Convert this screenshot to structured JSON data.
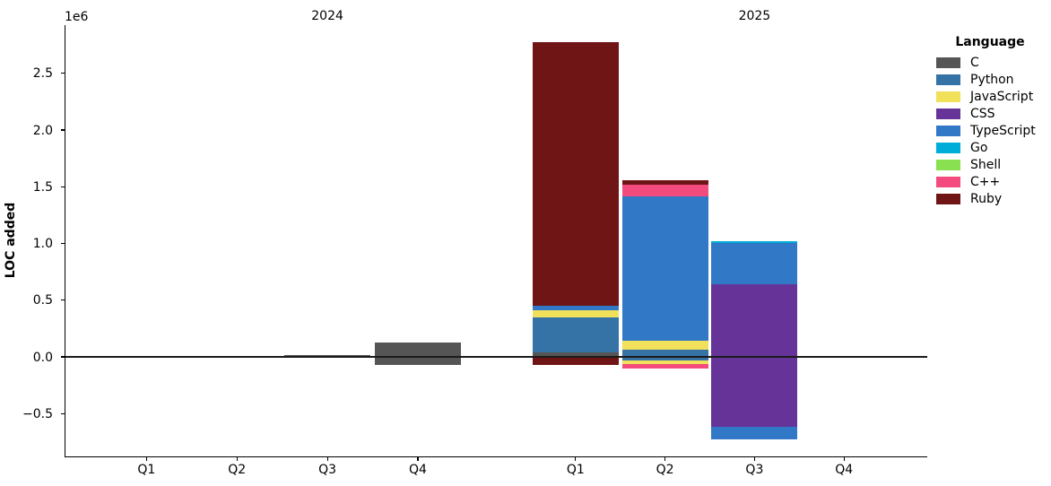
{
  "figure": {
    "background": "#ffffff"
  },
  "chart_data": {
    "type": "bar",
    "stacked": true,
    "title": "",
    "xlabel": "",
    "ylabel": "LOC added",
    "y_offset_text": "1e6",
    "y_unit": "LOC",
    "ylim": [
      -880000,
      2930000
    ],
    "grid": false,
    "zero_line": true,
    "yticks": [
      {
        "value": -500000,
        "label": "−0.5"
      },
      {
        "value": 0,
        "label": "0.0"
      },
      {
        "value": 500000,
        "label": "0.5"
      },
      {
        "value": 1000000,
        "label": "1.0"
      },
      {
        "value": 1500000,
        "label": "1.5"
      },
      {
        "value": 2000000,
        "label": "2.0"
      },
      {
        "value": 2500000,
        "label": "2.5"
      }
    ],
    "legend": {
      "title": "Language",
      "position": "upper right outside",
      "entries": [
        "C",
        "Python",
        "JavaScript",
        "CSS",
        "TypeScript",
        "Go",
        "Shell",
        "C++",
        "Ruby"
      ]
    },
    "palette": {
      "C": "#555555",
      "Python": "#3572A5",
      "JavaScript": "#f1e05a",
      "CSS": "#663399",
      "TypeScript": "#3178c6",
      "Go": "#00ADD8",
      "Shell": "#89e051",
      "C++": "#f34b7d",
      "Ruby": "#701516"
    },
    "groups": [
      {
        "year": "2024",
        "quarters": [
          {
            "label": "Q1",
            "pos": [],
            "neg": []
          },
          {
            "label": "Q2",
            "pos": [],
            "neg": []
          },
          {
            "label": "Q3",
            "pos": [
              {
                "lang": "C",
                "value": 15000
              }
            ],
            "neg": []
          },
          {
            "label": "Q4",
            "pos": [
              {
                "lang": "C",
                "value": 126000
              }
            ],
            "neg": [
              {
                "lang": "C",
                "value": -68000
              }
            ]
          }
        ]
      },
      {
        "year": "2025",
        "quarters": [
          {
            "label": "Q1",
            "pos": [
              {
                "lang": "C",
                "value": 39000
              },
              {
                "lang": "Python",
                "value": 310000
              },
              {
                "lang": "JavaScript",
                "value": 63000
              },
              {
                "lang": "TypeScript",
                "value": 39000
              },
              {
                "lang": "Ruby",
                "value": 2325000
              }
            ],
            "neg": [
              {
                "lang": "Ruby",
                "value": -75000
              }
            ]
          },
          {
            "label": "Q2",
            "pos": [
              {
                "lang": "Python",
                "value": 66000
              },
              {
                "lang": "JavaScript",
                "value": 79000
              },
              {
                "lang": "TypeScript",
                "value": 1270000
              },
              {
                "lang": "C++",
                "value": 102000
              },
              {
                "lang": "Ruby",
                "value": 39000
              }
            ],
            "neg": [
              {
                "lang": "Python",
                "value": -34000
              },
              {
                "lang": "JavaScript",
                "value": -29000
              },
              {
                "lang": "C++",
                "value": -37000
              }
            ]
          },
          {
            "label": "Q3",
            "pos": [
              {
                "lang": "CSS",
                "value": 640000
              },
              {
                "lang": "TypeScript",
                "value": 362000
              },
              {
                "lang": "Go",
                "value": 19000
              }
            ],
            "neg": [
              {
                "lang": "CSS",
                "value": -620000
              },
              {
                "lang": "TypeScript",
                "value": -110000
              }
            ]
          },
          {
            "label": "Q4",
            "pos": [],
            "neg": []
          }
        ]
      }
    ]
  }
}
